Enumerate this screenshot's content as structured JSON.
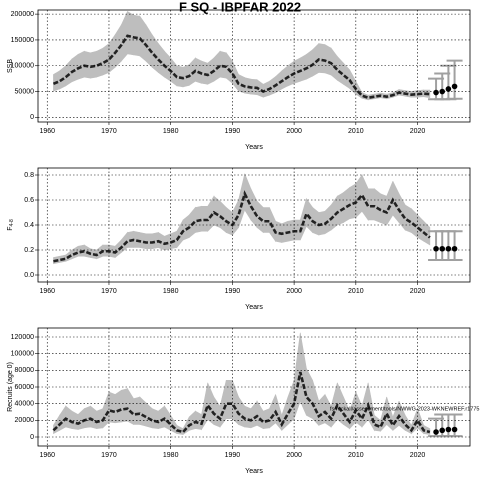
{
  "chart_data": [
    {
      "type": "line",
      "title": "F SQ - IBPFAR 2022",
      "ylabel": "SSB",
      "xlabel": "Years",
      "xlim": [
        1958.5,
        2028.5
      ],
      "xticks": [
        1960,
        1970,
        1980,
        1990,
        2000,
        2010,
        2020
      ],
      "ylim": [
        -9000,
        208000
      ],
      "yticks": [
        0,
        50000,
        100000,
        150000,
        200000
      ],
      "grid": true,
      "line_color": "#222222",
      "band_color": "#bebebe",
      "point_color": "#000000",
      "errorbar_color": "#a0a0a0",
      "x": [
        1961,
        1962,
        1963,
        1964,
        1965,
        1966,
        1967,
        1968,
        1969,
        1970,
        1971,
        1972,
        1973,
        1974,
        1975,
        1976,
        1977,
        1978,
        1979,
        1980,
        1981,
        1982,
        1983,
        1984,
        1985,
        1986,
        1987,
        1988,
        1989,
        1990,
        1991,
        1992,
        1993,
        1994,
        1995,
        1996,
        1997,
        1998,
        1999,
        2000,
        2001,
        2002,
        2003,
        2004,
        2005,
        2006,
        2007,
        2008,
        2009,
        2010,
        2011,
        2012,
        2013,
        2014,
        2015,
        2016,
        2017,
        2018,
        2019,
        2020,
        2021,
        2022
      ],
      "values": [
        65000,
        70000,
        78000,
        88000,
        95000,
        100000,
        98000,
        100000,
        105000,
        112000,
        125000,
        140000,
        158000,
        155000,
        153000,
        140000,
        125000,
        112000,
        100000,
        90000,
        78000,
        76000,
        80000,
        90000,
        85000,
        82000,
        90000,
        100000,
        98000,
        85000,
        65000,
        60000,
        58000,
        57000,
        50000,
        55000,
        62000,
        70000,
        78000,
        85000,
        90000,
        95000,
        102000,
        112000,
        110000,
        105000,
        92000,
        82000,
        72000,
        55000,
        42000,
        38000,
        40000,
        42000,
        40000,
        43000,
        48000,
        46000,
        44000,
        45000,
        46000,
        45000
      ],
      "lower": [
        51000,
        55000,
        61000,
        69000,
        74000,
        78000,
        76000,
        78000,
        82000,
        87000,
        97000,
        109000,
        123000,
        121000,
        119000,
        109000,
        97000,
        87000,
        78000,
        70000,
        61000,
        59000,
        62000,
        70000,
        66000,
        64000,
        70000,
        78000,
        76000,
        66000,
        51000,
        47000,
        45000,
        44000,
        39000,
        43000,
        48000,
        55000,
        61000,
        66000,
        70000,
        74000,
        80000,
        87000,
        86000,
        82000,
        72000,
        64000,
        56000,
        45000,
        37000,
        34000,
        36000,
        38000,
        36000,
        39000,
        43000,
        41000,
        39000,
        39000,
        40000,
        38000
      ],
      "upper": [
        83000,
        90000,
        100000,
        113000,
        122000,
        128000,
        125000,
        128000,
        134000,
        143000,
        160000,
        179000,
        205000,
        198000,
        196000,
        179000,
        160000,
        143000,
        128000,
        115000,
        100000,
        97000,
        102000,
        115000,
        109000,
        105000,
        115000,
        128000,
        125000,
        109000,
        83000,
        77000,
        74000,
        73000,
        64000,
        70000,
        79000,
        90000,
        100000,
        109000,
        115000,
        122000,
        131000,
        143000,
        141000,
        134000,
        118000,
        105000,
        92000,
        70000,
        48000,
        43000,
        45000,
        47000,
        45000,
        48000,
        54000,
        52000,
        50000,
        52000,
        53000,
        53000
      ],
      "proj_x": [
        2023,
        2024,
        2025,
        2026
      ],
      "proj_values": [
        48000,
        50000,
        55000,
        60000
      ],
      "proj_lower": [
        35000,
        35000,
        35000,
        36000
      ],
      "proj_upper": [
        75000,
        85000,
        100000,
        110000
      ]
    },
    {
      "type": "line",
      "ylabel": "F",
      "ylabel_sub": "4-8",
      "xlabel": "Years",
      "xlim": [
        1958.5,
        2028.5
      ],
      "xticks": [
        1960,
        1970,
        1980,
        1990,
        2000,
        2010,
        2020
      ],
      "ylim": [
        -0.056,
        0.856
      ],
      "yticks": [
        {
          "value": 0,
          "label": "0.0"
        },
        0.2,
        0.4,
        0.6,
        0.8
      ],
      "grid": true,
      "line_color": "#222222",
      "band_color": "#bebebe",
      "point_color": "#000000",
      "errorbar_color": "#a0a0a0",
      "x": [
        1961,
        1962,
        1963,
        1964,
        1965,
        1966,
        1967,
        1968,
        1969,
        1970,
        1971,
        1972,
        1973,
        1974,
        1975,
        1976,
        1977,
        1978,
        1979,
        1980,
        1981,
        1982,
        1983,
        1984,
        1985,
        1986,
        1987,
        1988,
        1989,
        1990,
        1991,
        1992,
        1993,
        1994,
        1995,
        1996,
        1997,
        1998,
        1999,
        2000,
        2001,
        2002,
        2003,
        2004,
        2005,
        2006,
        2007,
        2008,
        2009,
        2010,
        2011,
        2012,
        2013,
        2014,
        2015,
        2016,
        2017,
        2018,
        2019,
        2020,
        2021,
        2022
      ],
      "values": [
        0.11,
        0.12,
        0.13,
        0.16,
        0.18,
        0.19,
        0.17,
        0.16,
        0.19,
        0.19,
        0.18,
        0.22,
        0.27,
        0.28,
        0.27,
        0.26,
        0.26,
        0.27,
        0.25,
        0.26,
        0.28,
        0.35,
        0.38,
        0.43,
        0.44,
        0.44,
        0.5,
        0.47,
        0.43,
        0.4,
        0.48,
        0.65,
        0.55,
        0.47,
        0.43,
        0.43,
        0.34,
        0.33,
        0.34,
        0.35,
        0.35,
        0.49,
        0.43,
        0.4,
        0.41,
        0.45,
        0.5,
        0.53,
        0.56,
        0.58,
        0.64,
        0.55,
        0.55,
        0.52,
        0.5,
        0.6,
        0.52,
        0.45,
        0.42,
        0.38,
        0.34,
        0.3
      ],
      "lower": [
        0.09,
        0.1,
        0.11,
        0.13,
        0.15,
        0.15,
        0.14,
        0.13,
        0.15,
        0.15,
        0.14,
        0.18,
        0.22,
        0.22,
        0.22,
        0.21,
        0.21,
        0.22,
        0.2,
        0.21,
        0.22,
        0.28,
        0.3,
        0.34,
        0.35,
        0.35,
        0.4,
        0.38,
        0.34,
        0.32,
        0.38,
        0.52,
        0.44,
        0.38,
        0.34,
        0.34,
        0.27,
        0.26,
        0.27,
        0.28,
        0.28,
        0.39,
        0.34,
        0.32,
        0.33,
        0.36,
        0.4,
        0.42,
        0.45,
        0.46,
        0.51,
        0.44,
        0.44,
        0.42,
        0.4,
        0.48,
        0.42,
        0.36,
        0.34,
        0.3,
        0.27,
        0.24
      ],
      "upper": [
        0.14,
        0.15,
        0.16,
        0.2,
        0.23,
        0.24,
        0.21,
        0.2,
        0.24,
        0.24,
        0.23,
        0.28,
        0.34,
        0.35,
        0.34,
        0.33,
        0.33,
        0.34,
        0.31,
        0.33,
        0.35,
        0.44,
        0.48,
        0.54,
        0.55,
        0.55,
        0.63,
        0.59,
        0.54,
        0.5,
        0.6,
        0.81,
        0.69,
        0.59,
        0.54,
        0.54,
        0.43,
        0.41,
        0.43,
        0.44,
        0.44,
        0.61,
        0.54,
        0.5,
        0.51,
        0.56,
        0.63,
        0.66,
        0.7,
        0.73,
        0.8,
        0.69,
        0.69,
        0.65,
        0.63,
        0.75,
        0.65,
        0.56,
        0.53,
        0.48,
        0.43,
        0.38
      ],
      "proj_x": [
        2023,
        2024,
        2025,
        2026
      ],
      "proj_values": [
        0.21,
        0.21,
        0.21,
        0.21
      ],
      "proj_lower": [
        0.12,
        0.12,
        0.12,
        0.12
      ],
      "proj_upper": [
        0.35,
        0.35,
        0.35,
        0.35
      ]
    },
    {
      "type": "line",
      "ylabel": "Recruits (age 0)",
      "xlabel": "Years",
      "annotation": "fs/rockall/assessment/tools/NWWG-2023-WKNEWREF.r1775",
      "xlim": [
        1958.5,
        2028.5
      ],
      "xticks": [
        1960,
        1970,
        1980,
        1990,
        2000,
        2010,
        2020
      ],
      "ylim": [
        -10800,
        130800
      ],
      "yticks": [
        0,
        20000,
        40000,
        60000,
        80000,
        100000,
        120000
      ],
      "grid": true,
      "line_color": "#222222",
      "band_color": "#bebebe",
      "point_color": "#000000",
      "errorbar_color": "#a0a0a0",
      "x": [
        1961,
        1962,
        1963,
        1964,
        1965,
        1966,
        1967,
        1968,
        1969,
        1970,
        1971,
        1972,
        1973,
        1974,
        1975,
        1976,
        1977,
        1978,
        1979,
        1980,
        1981,
        1982,
        1983,
        1984,
        1985,
        1986,
        1987,
        1988,
        1989,
        1990,
        1991,
        1992,
        1993,
        1994,
        1995,
        1996,
        1997,
        1998,
        1999,
        2000,
        2001,
        2002,
        2003,
        2004,
        2005,
        2006,
        2007,
        2008,
        2009,
        2010,
        2011,
        2012,
        2013,
        2014,
        2015,
        2016,
        2017,
        2018,
        2019,
        2020,
        2021,
        2022
      ],
      "values": [
        8000,
        15000,
        22000,
        18000,
        16000,
        20000,
        22000,
        18000,
        20000,
        32000,
        30000,
        33000,
        34000,
        27000,
        28000,
        24000,
        20000,
        18000,
        22000,
        15000,
        8000,
        6000,
        14000,
        18000,
        16000,
        38000,
        28000,
        22000,
        40000,
        40000,
        28000,
        22000,
        20000,
        25000,
        18000,
        20000,
        30000,
        15000,
        28000,
        40000,
        78000,
        48000,
        40000,
        25000,
        30000,
        22000,
        38000,
        28000,
        18000,
        32000,
        22000,
        38000,
        15000,
        12000,
        28000,
        14000,
        25000,
        15000,
        8000,
        20000,
        8000,
        6000
      ],
      "lower": [
        4000,
        8000,
        12000,
        10000,
        9000,
        11000,
        12000,
        10000,
        11000,
        18000,
        17000,
        18000,
        19000,
        15000,
        15000,
        13000,
        11000,
        10000,
        12000,
        8000,
        4000,
        3000,
        8000,
        10000,
        9000,
        21000,
        15000,
        12000,
        22000,
        22000,
        15000,
        12000,
        11000,
        14000,
        10000,
        11000,
        17000,
        8000,
        15000,
        22000,
        43000,
        26000,
        22000,
        14000,
        17000,
        12000,
        21000,
        15000,
        10000,
        18000,
        12000,
        21000,
        8000,
        7000,
        15000,
        8000,
        14000,
        8000,
        4000,
        11000,
        4000,
        3000
      ],
      "upper": [
        14000,
        26000,
        37000,
        31000,
        27000,
        34000,
        37000,
        31000,
        34000,
        54000,
        51000,
        56000,
        58000,
        46000,
        48000,
        41000,
        34000,
        31000,
        37000,
        26000,
        14000,
        10000,
        24000,
        31000,
        27000,
        65000,
        48000,
        37000,
        68000,
        68000,
        48000,
        37000,
        34000,
        43000,
        31000,
        34000,
        51000,
        26000,
        48000,
        68000,
        125000,
        82000,
        68000,
        43000,
        51000,
        37000,
        65000,
        48000,
        31000,
        54000,
        37000,
        65000,
        26000,
        20000,
        48000,
        24000,
        43000,
        26000,
        14000,
        34000,
        14000,
        10000
      ],
      "proj_x": [
        2023,
        2024,
        2025,
        2026
      ],
      "proj_values": [
        6000,
        8000,
        9000,
        9000
      ],
      "proj_lower": [
        1000,
        1000,
        1000,
        1000
      ],
      "proj_upper": [
        22000,
        27000,
        27000,
        27000
      ]
    }
  ]
}
